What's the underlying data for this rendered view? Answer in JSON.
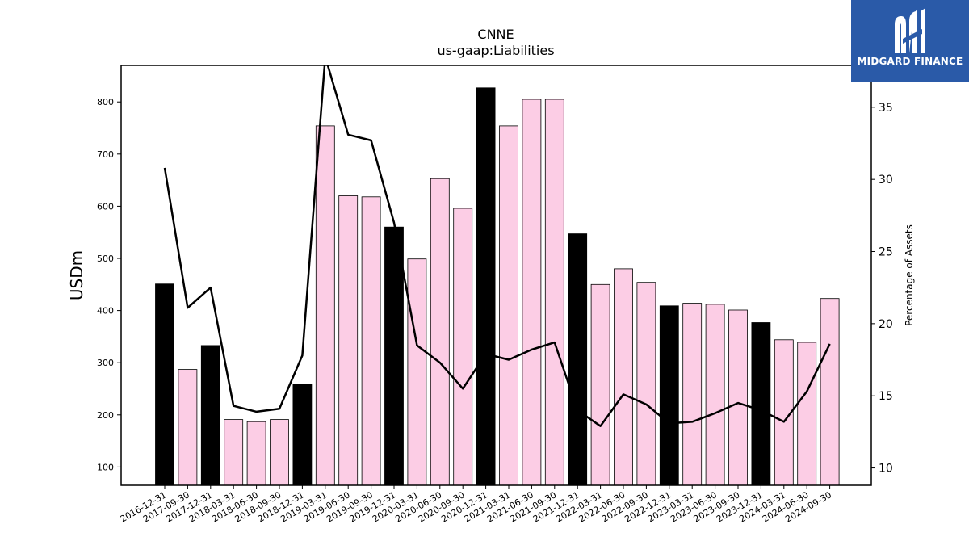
{
  "chart_data": {
    "type": "bar",
    "title": "CNNE",
    "subtitle": "us-gaap:Liabilities",
    "ylabel": "USDm",
    "y2label": "Percentage of Assets",
    "ylim": [
      65,
      870
    ],
    "y2lim": [
      8.8,
      37.9
    ],
    "yticks": [
      100,
      200,
      300,
      400,
      500,
      600,
      700,
      800
    ],
    "y2ticks": [
      10,
      15,
      20,
      25,
      30,
      35
    ],
    "categories": [
      "2016-12-31",
      "2017-09-30",
      "2017-12-31",
      "2018-03-31",
      "2018-06-30",
      "2018-09-30",
      "2018-12-31",
      "2019-03-31",
      "2019-06-30",
      "2019-09-30",
      "2019-12-31",
      "2020-03-31",
      "2020-06-30",
      "2020-09-30",
      "2020-12-31",
      "2021-03-31",
      "2021-06-30",
      "2021-09-30",
      "2021-12-31",
      "2022-03-31",
      "2022-06-30",
      "2022-09-30",
      "2022-12-31",
      "2023-03-31",
      "2023-06-30",
      "2023-09-30",
      "2023-12-31",
      "2024-03-31",
      "2024-06-30",
      "2024-09-30"
    ],
    "series": [
      {
        "type": "bar",
        "values": [
          451,
          287,
          333,
          191,
          187,
          191,
          259,
          754,
          620,
          618,
          560,
          499,
          653,
          596,
          827,
          754,
          805,
          805,
          547,
          450,
          480,
          454,
          409,
          414,
          412,
          401,
          377,
          344,
          339,
          423
        ],
        "annual_color": "#000000",
        "quarter_color": "#fccde5",
        "annual_flags": [
          true,
          false,
          true,
          false,
          false,
          false,
          true,
          false,
          false,
          false,
          true,
          false,
          false,
          false,
          true,
          false,
          false,
          false,
          true,
          false,
          false,
          false,
          true,
          false,
          false,
          false,
          true,
          false,
          false,
          false
        ]
      },
      {
        "type": "line",
        "axis": "right",
        "color": "#000000",
        "values": [
          30.8,
          21.1,
          22.5,
          14.3,
          13.9,
          14.1,
          17.8,
          38.5,
          33.1,
          32.7,
          27.0,
          18.5,
          17.3,
          15.5,
          17.9,
          17.5,
          18.2,
          18.7,
          14.0,
          12.9,
          15.1,
          14.4,
          13.1,
          13.2,
          13.8,
          14.5,
          14.0,
          13.2,
          15.3,
          18.6
        ]
      }
    ],
    "grid": false,
    "legend": "none"
  },
  "logo": {
    "text": "MIDGARD FINANCE"
  }
}
